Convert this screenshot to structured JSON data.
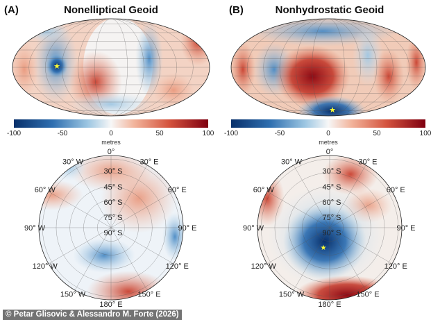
{
  "panels": [
    {
      "letter": "(A)",
      "title": "Nonelliptical Geoid"
    },
    {
      "letter": "(B)",
      "title": "Nonhydrostatic Geoid"
    }
  ],
  "colorbar": {
    "ticks": [
      "-100",
      "-50",
      "0",
      "50",
      "100"
    ],
    "unit": "metres",
    "colors": [
      "#08306b",
      "#2f6fb0",
      "#9cc6e2",
      "#f7f7f7",
      "#f2b49b",
      "#d4533e",
      "#7f0010"
    ]
  },
  "polar": {
    "longitude_labels": [
      "0°",
      "30° E",
      "60° E",
      "90° E",
      "120° E",
      "150° E",
      "180° E",
      "150° W",
      "120° W",
      "90° W",
      "60° W",
      "30° W"
    ],
    "latitude_labels": [
      "30° S",
      "45° S",
      "60° S",
      "75° S",
      "90° S"
    ]
  },
  "marker": {
    "symbol": "★",
    "color": "#ffff33"
  },
  "credit": "© Petar Glisovic & Alessandro M. Forte (2026)"
}
